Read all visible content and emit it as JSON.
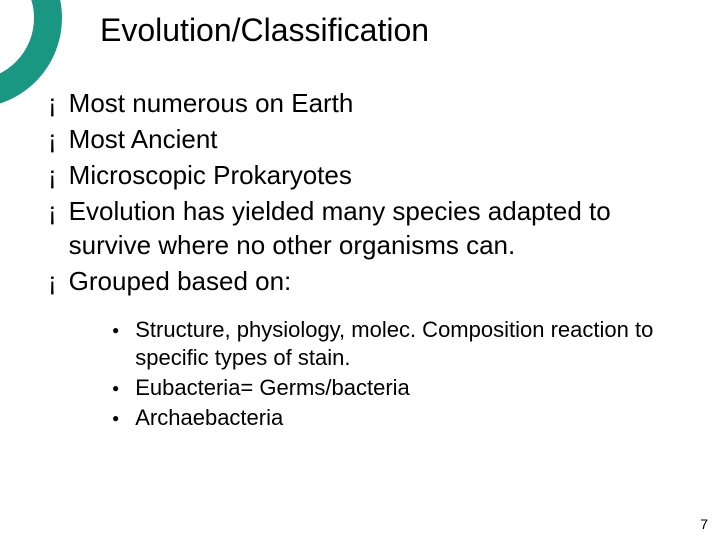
{
  "accent_color": "#1a9782",
  "title": "Evolution/Classification",
  "main_bullets": [
    "Most numerous on Earth",
    "Most Ancient",
    "Microscopic Prokaryotes",
    "Evolution has yielded many species adapted to survive where no other organisms can.",
    "Grouped based on:"
  ],
  "sub_bullets": [
    "Structure, physiology, molec. Composition reaction to specific types of stain.",
    "Eubacteria= Germs/bacteria",
    "Archaebacteria"
  ],
  "main_bullet_glyph": "¡",
  "sub_bullet_glyph": "●",
  "page_number": "7"
}
